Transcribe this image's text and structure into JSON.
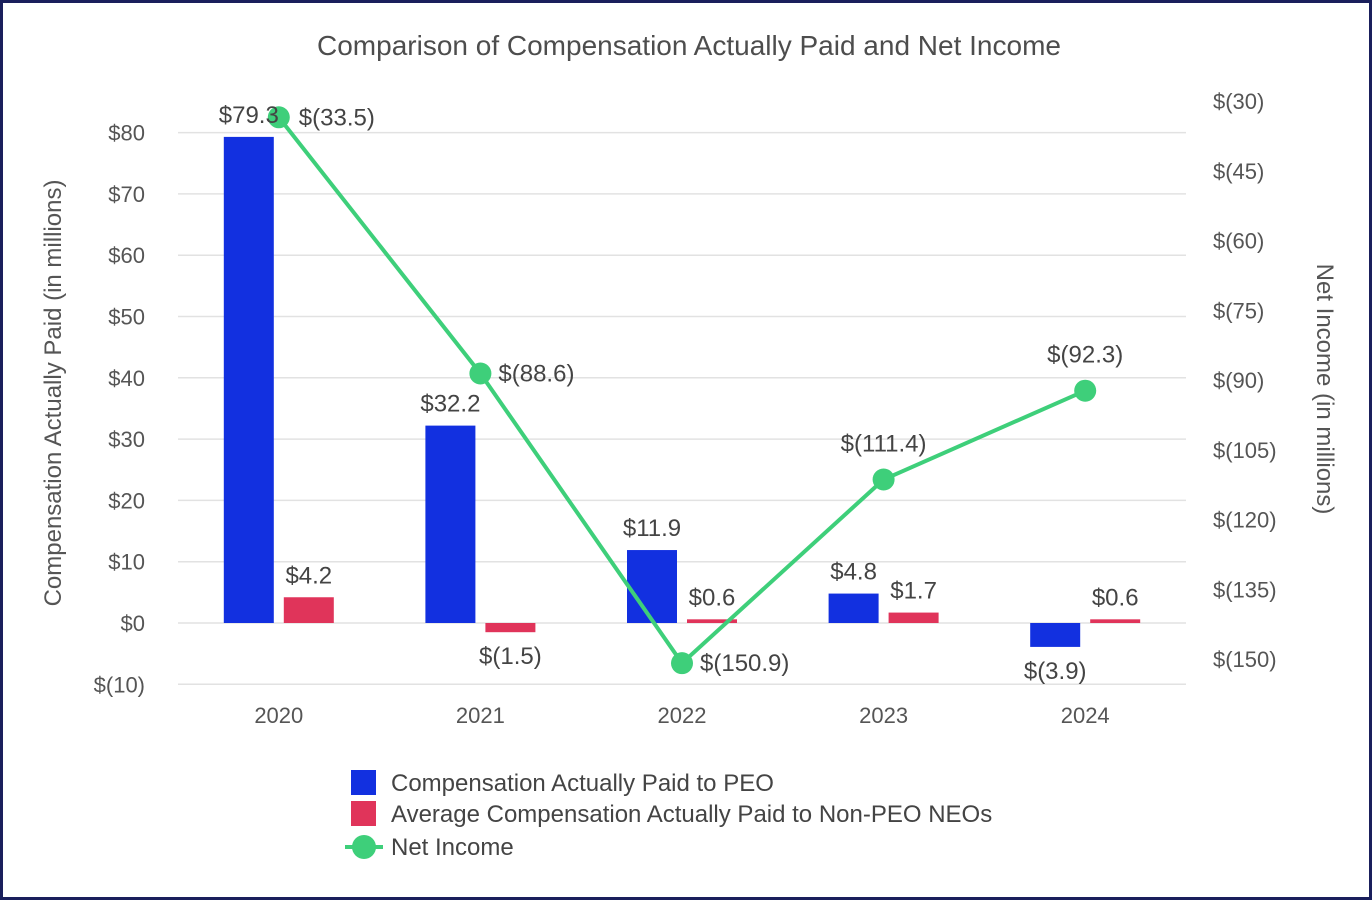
{
  "chart_data": {
    "type": "bar+line",
    "title": "Comparison of Compensation Actually Paid and Net Income",
    "categories": [
      "2020",
      "2021",
      "2022",
      "2023",
      "2024"
    ],
    "y_left": {
      "label": "Compensation Actually Paid (in millions)",
      "range": [
        -10,
        80
      ],
      "ticks": [
        80,
        70,
        60,
        50,
        40,
        30,
        20,
        10,
        0,
        -10
      ],
      "tick_labels": [
        "$80",
        "$70",
        "$60",
        "$50",
        "$40",
        "$30",
        "$20",
        "$10",
        "$0",
        "$(10)"
      ],
      "grid": true
    },
    "y_right": {
      "label": "Net Income (in millions)",
      "range": [
        -150,
        -30
      ],
      "ticks": [
        -30,
        -45,
        -60,
        -75,
        -90,
        -105,
        -120,
        -135,
        -150
      ],
      "tick_labels": [
        "$(30)",
        "$(45)",
        "$(60)",
        "$(75)",
        "$(90)",
        "$(105)",
        "$(120)",
        "$(135)",
        "$(150)"
      ]
    },
    "series": [
      {
        "name": "Compensation Actually Paid to PEO",
        "type": "bar",
        "axis": "left",
        "color": "#1230e0",
        "values": [
          79.3,
          32.2,
          11.9,
          4.8,
          -3.9
        ],
        "labels": [
          "$79.3",
          "$32.2",
          "$11.9",
          "$4.8",
          "$(3.9)"
        ]
      },
      {
        "name": "Average Compensation Actually Paid to Non-PEO NEOs",
        "type": "bar",
        "axis": "left",
        "color": "#e0345a",
        "values": [
          4.2,
          -1.5,
          0.6,
          1.7,
          0.6
        ],
        "labels": [
          "$4.2",
          "$(1.5)",
          "$0.6",
          "$1.7",
          "$0.6"
        ]
      },
      {
        "name": "Net Income",
        "type": "line",
        "axis": "right",
        "color": "#3ecf7a",
        "values": [
          -33.5,
          -88.6,
          -150.9,
          -111.4,
          -92.3
        ],
        "labels": [
          "$(33.5)",
          "$(88.6)",
          "$(150.9)",
          "$(111.4)",
          "$(92.3)"
        ]
      }
    ],
    "legend": [
      "Compensation Actually Paid to PEO",
      "Average Compensation Actually Paid to Non-PEO NEOs",
      "Net Income"
    ],
    "legend_position": "bottom-center"
  }
}
